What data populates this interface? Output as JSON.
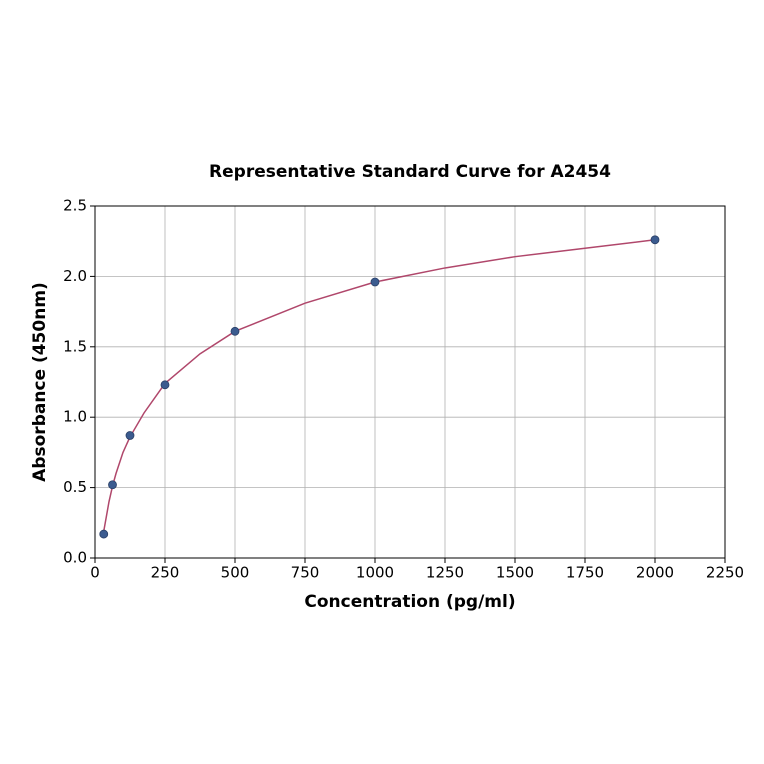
{
  "chart_data": {
    "type": "scatter",
    "title": "Representative Standard Curve for A2454",
    "x_label": "Concentration (pg/ml)",
    "y_label": "Absorbance (450nm)",
    "xlim": [
      0,
      2250
    ],
    "xticks": [
      0,
      250,
      500,
      750,
      1000,
      1250,
      1500,
      1750,
      2000,
      2250
    ],
    "ylim": [
      0,
      2.5
    ],
    "yticks": [
      {
        "value": 0,
        "label": "0.0"
      },
      0.5,
      {
        "value": 1,
        "label": "1.0"
      },
      1.5,
      {
        "value": 2,
        "label": "2.0"
      },
      2.5
    ],
    "grid": true,
    "series": [
      {
        "kind": "points",
        "color": "#3b5b8f",
        "x": [
          31.25,
          62.5,
          125,
          250,
          500,
          1000,
          2000
        ],
        "values": [
          0.17,
          0.52,
          0.87,
          1.23,
          1.61,
          1.96,
          2.26
        ]
      },
      {
        "kind": "curve",
        "color": "#b0476b",
        "x": [
          31.25,
          50,
          62.5,
          75,
          100,
          125,
          175,
          250,
          375,
          500,
          750,
          1000,
          1250,
          1500,
          1750,
          2000
        ],
        "values": [
          0.19,
          0.4,
          0.51,
          0.6,
          0.75,
          0.86,
          1.03,
          1.24,
          1.45,
          1.61,
          1.81,
          1.96,
          2.06,
          2.14,
          2.2,
          2.26
        ]
      }
    ]
  }
}
